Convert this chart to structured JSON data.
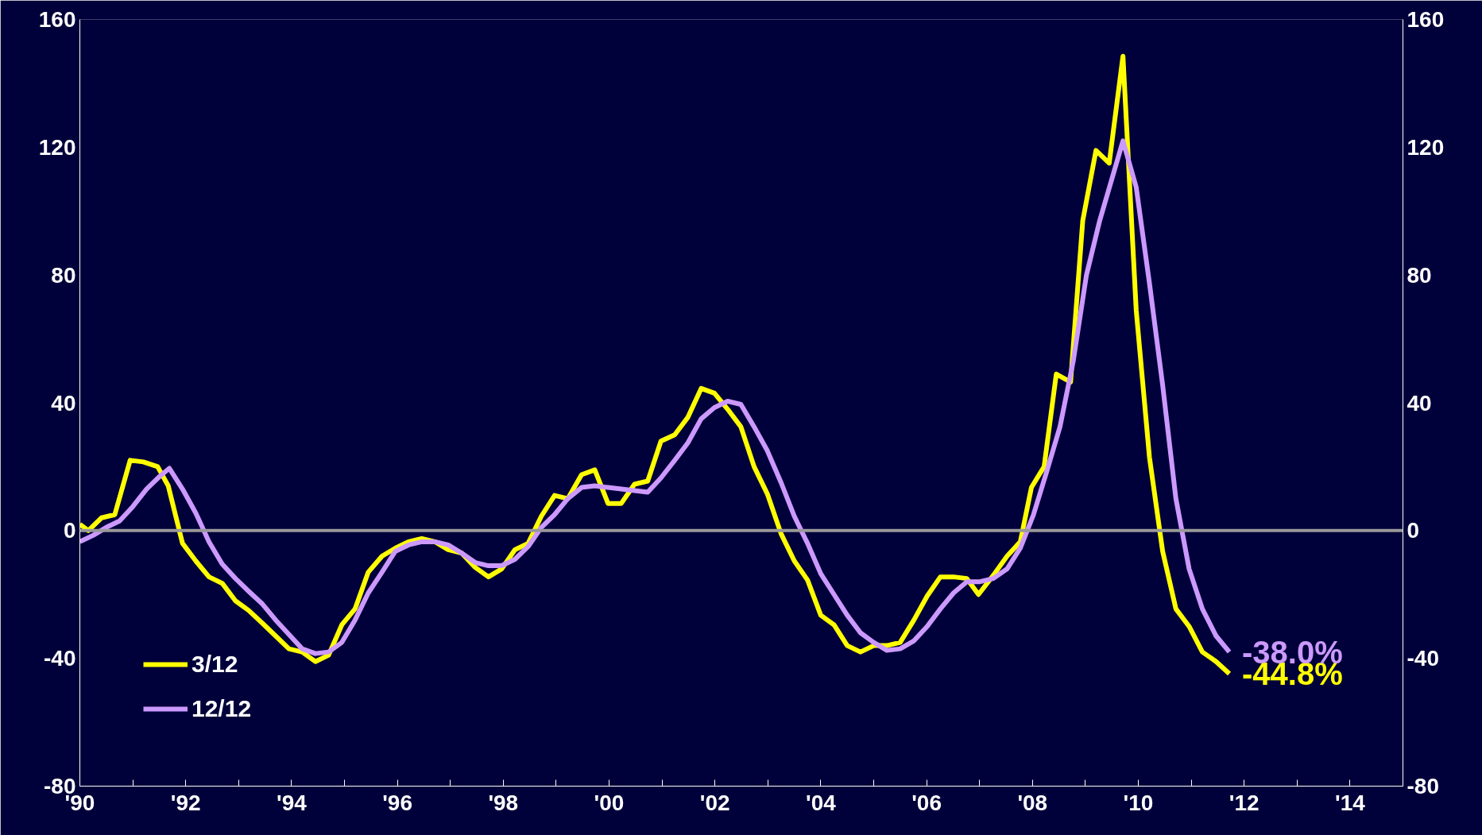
{
  "chart_data": {
    "type": "line",
    "series": [
      {
        "name": "3/12",
        "color": "#ffff00",
        "x": [
          1990.0,
          1990.16,
          1990.41,
          1990.66,
          1990.95,
          1991.2,
          1991.47,
          1991.67,
          1991.94,
          1992.19,
          1992.44,
          1992.69,
          1992.94,
          1993.19,
          1993.45,
          1993.7,
          1993.95,
          1994.2,
          1994.45,
          1994.7,
          1994.95,
          1995.2,
          1995.45,
          1995.71,
          1995.96,
          1996.21,
          1996.46,
          1996.71,
          1996.96,
          1997.21,
          1997.47,
          1997.72,
          1997.97,
          1998.22,
          1998.47,
          1998.72,
          1998.97,
          1999.22,
          1999.48,
          1999.73,
          1999.98,
          2000.23,
          2000.48,
          2000.73,
          2000.98,
          2001.24,
          2001.49,
          2001.74,
          2001.99,
          2002.24,
          2002.49,
          2002.74,
          2002.99,
          2003.25,
          2003.5,
          2003.75,
          2004.0,
          2004.25,
          2004.5,
          2004.75,
          2005.0,
          2005.25,
          2005.5,
          2005.76,
          2006.01,
          2006.26,
          2006.51,
          2006.76,
          2006.98,
          2007.26,
          2007.52,
          2007.77,
          2007.98,
          2008.22,
          2008.45,
          2008.72,
          2008.95,
          2009.2,
          2009.45,
          2009.71,
          2009.96,
          2010.21,
          2010.46,
          2010.71,
          2010.96,
          2011.21,
          2011.47,
          2011.72
        ],
        "values": [
          2,
          0,
          4,
          5,
          22,
          21.5,
          20,
          14,
          -4,
          -9.5,
          -14.5,
          -16.5,
          -22,
          -25,
          -29,
          -33,
          -37,
          -38,
          -41,
          -39,
          -29.5,
          -24.5,
          -13,
          -8,
          -5.5,
          -3.5,
          -2.5,
          -3.5,
          -6,
          -7,
          -11.5,
          -14.5,
          -12,
          -6,
          -4,
          4.5,
          11,
          10,
          17.5,
          19,
          8.5,
          8.5,
          14.5,
          15.5,
          28,
          30,
          35.5,
          44.5,
          43,
          38,
          32.5,
          20,
          11.5,
          -1,
          -9.5,
          -15.5,
          -26.5,
          -29.5,
          -36,
          -38,
          -36,
          -36,
          -35,
          -28,
          -20.5,
          -14.5,
          -14.5,
          -15,
          -20,
          -14,
          -8,
          -3.5,
          13.5,
          20,
          49,
          46.5,
          97,
          119,
          115,
          148.5,
          69,
          23,
          -6.5,
          -24.5,
          -30,
          -38,
          -41,
          -44.8
        ]
      },
      {
        "name": "12/12",
        "color": "#cc99ff",
        "x": [
          1990.0,
          1990.25,
          1990.5,
          1990.75,
          1991.0,
          1991.26,
          1991.51,
          1991.69,
          1991.94,
          1992.19,
          1992.44,
          1992.69,
          1992.94,
          1993.19,
          1993.45,
          1993.7,
          1993.95,
          1994.2,
          1994.45,
          1994.7,
          1994.95,
          1995.2,
          1995.45,
          1995.71,
          1995.96,
          1996.21,
          1996.46,
          1996.71,
          1996.96,
          1997.21,
          1997.47,
          1997.72,
          1997.97,
          1998.22,
          1998.47,
          1998.72,
          1998.97,
          1999.22,
          1999.48,
          1999.73,
          1999.98,
          2000.23,
          2000.48,
          2000.73,
          2000.98,
          2001.24,
          2001.49,
          2001.74,
          2001.99,
          2002.24,
          2002.49,
          2002.74,
          2002.99,
          2003.25,
          2003.5,
          2003.75,
          2004.0,
          2004.25,
          2004.5,
          2004.75,
          2005.0,
          2005.25,
          2005.5,
          2005.76,
          2006.01,
          2006.26,
          2006.51,
          2006.76,
          2007.01,
          2007.26,
          2007.52,
          2007.77,
          2008.02,
          2008.27,
          2008.52,
          2008.77,
          2009.02,
          2009.27,
          2009.71,
          2009.96,
          2010.21,
          2010.46,
          2010.71,
          2010.96,
          2011.21,
          2011.47,
          2011.72
        ],
        "values": [
          -3.5,
          -1.5,
          1,
          3,
          7.5,
          13,
          17,
          19.5,
          13,
          5.5,
          -3.5,
          -10.5,
          -15,
          -19,
          -23,
          -28,
          -32.5,
          -37,
          -38.5,
          -38,
          -35,
          -28,
          -19.5,
          -13,
          -6.5,
          -4.5,
          -3.5,
          -3.5,
          -4.5,
          -7,
          -10,
          -11,
          -11,
          -9,
          -5,
          1,
          5,
          10,
          13.5,
          14,
          13.5,
          13,
          12.5,
          12,
          16.5,
          22,
          27.5,
          35,
          38.5,
          40.5,
          39.5,
          32.5,
          25,
          15,
          4.5,
          -4,
          -13.5,
          -20,
          -26.5,
          -32,
          -35,
          -37.5,
          -37,
          -34.5,
          -30,
          -24.5,
          -19.5,
          -16,
          -16,
          -15,
          -12,
          -5.5,
          5,
          18.5,
          32.5,
          53,
          80,
          97,
          122,
          107.5,
          77.5,
          45.5,
          10,
          -12,
          -24.5,
          -33,
          -38
        ]
      }
    ],
    "xlim": [
      1990,
      2015
    ],
    "xticks": [
      {
        "value": 1990,
        "label": "'90"
      },
      {
        "value": 1991,
        "label": null
      },
      {
        "value": 1992,
        "label": "'92"
      },
      {
        "value": 1993,
        "label": null
      },
      {
        "value": 1994,
        "label": "'94"
      },
      {
        "value": 1995,
        "label": null
      },
      {
        "value": 1996,
        "label": "'96"
      },
      {
        "value": 1997,
        "label": null
      },
      {
        "value": 1998,
        "label": "'98"
      },
      {
        "value": 1999,
        "label": null
      },
      {
        "value": 2000,
        "label": "'00"
      },
      {
        "value": 2001,
        "label": null
      },
      {
        "value": 2002,
        "label": "'02"
      },
      {
        "value": 2003,
        "label": null
      },
      {
        "value": 2004,
        "label": "'04"
      },
      {
        "value": 2005,
        "label": null
      },
      {
        "value": 2006,
        "label": "'06"
      },
      {
        "value": 2007,
        "label": null
      },
      {
        "value": 2008,
        "label": "'08"
      },
      {
        "value": 2009,
        "label": null
      },
      {
        "value": 2010,
        "label": "'10"
      },
      {
        "value": 2011,
        "label": null
      },
      {
        "value": 2012,
        "label": "'12"
      },
      {
        "value": 2013,
        "label": null
      },
      {
        "value": 2014,
        "label": "'14"
      },
      {
        "value": 2015,
        "label": null
      }
    ],
    "ylim": [
      -80,
      160
    ],
    "yticks": [
      -80,
      -40,
      0,
      40,
      80,
      120,
      160
    ],
    "y2lim": [
      -80,
      160
    ],
    "y2ticks": [
      -80,
      -40,
      0,
      40,
      80,
      120,
      160
    ],
    "ref_lines": [
      {
        "axis": "y",
        "value": 0,
        "color": "#999999"
      }
    ],
    "annotations": [
      {
        "text": "-44.8%",
        "x": 2011.72,
        "y": -44.8
      },
      {
        "text": "-38.0%",
        "x": 2011.72,
        "y": -38
      }
    ],
    "legend": "bottom left",
    "grid": false,
    "marker": "none",
    "line_style": "solid"
  }
}
